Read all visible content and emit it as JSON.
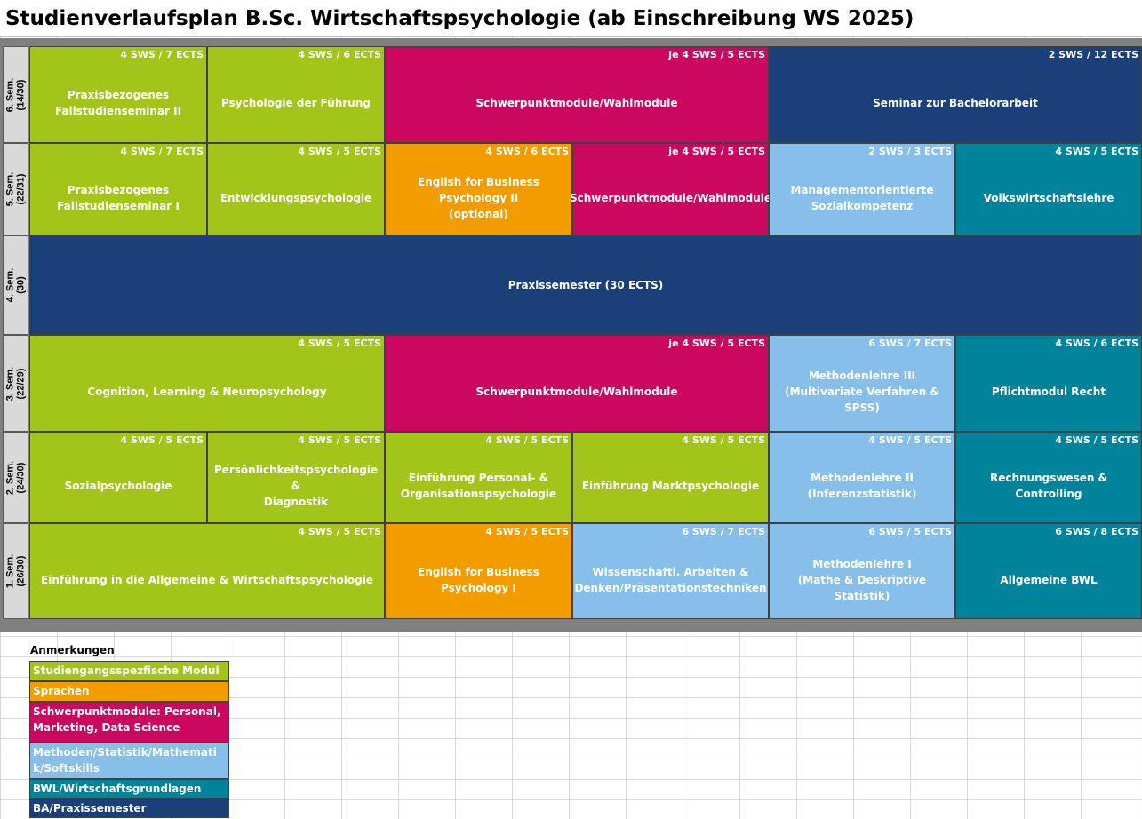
{
  "title": "Studienverlaufsplan B.Sc. Wirtschaftspsychologie (ab Einschreibung WS 2025)",
  "colors": {
    "studiengang": "#a3c519",
    "sprachen": "#f39c00",
    "schwerpunkt": "#cc075f",
    "methoden": "#86bfea",
    "bwl": "#00839b",
    "ba_praxis": "#1b3f78"
  },
  "semesters": [
    {
      "label": "6. Sem.\n(14/30)",
      "cells": [
        {
          "credits": "4 SWS / 7 ECTS",
          "name": "Praxisbezogenes\nFallstudienseminar II",
          "category": "studiengang"
        },
        {
          "credits": "4 SWS / 6 ECTS",
          "name": "Psychologie der Führung",
          "category": "studiengang"
        },
        {
          "credits": "je 4 SWS / 5 ECTS",
          "name": "Schwerpunktmodule/Wahlmodule",
          "category": "schwerpunkt"
        },
        {
          "credits": "2 SWS / 12 ECTS",
          "name": "Seminar zur Bachelorarbeit",
          "category": "ba_praxis"
        }
      ]
    },
    {
      "label": "5. Sem.\n(22/31)",
      "cells": [
        {
          "credits": "4 SWS / 7 ECTS",
          "name": "Praxisbezogenes\nFallstudienseminar I",
          "category": "studiengang"
        },
        {
          "credits": "4 SWS / 5 ECTS",
          "name": "Entwicklungspsychologie",
          "category": "studiengang"
        },
        {
          "credits": "4 SWS / 6 ECTS",
          "name": "English for Business Psychology II\n(optional)",
          "category": "sprachen"
        },
        {
          "credits": "je 4 SWS / 5 ECTS",
          "name": "Schwerpunktmodule/Wahlmodule",
          "category": "schwerpunkt"
        },
        {
          "credits": "2 SWS / 3 ECTS",
          "name": "Managementorientierte\nSozialkompetenz",
          "category": "methoden"
        },
        {
          "credits": "4 SWS / 5 ECTS",
          "name": "Volkswirtschaftslehre",
          "category": "bwl"
        }
      ]
    },
    {
      "label": "4. Sem.\n(30)",
      "cells": [
        {
          "credits": "",
          "name": "Praxissemester (30 ECTS)",
          "category": "ba_praxis"
        }
      ]
    },
    {
      "label": "3. Sem.\n(22/29)",
      "cells": [
        {
          "credits": "4 SWS / 5 ECTS",
          "name": "Cognition, Learning & Neuropsychology",
          "category": "studiengang"
        },
        {
          "credits": "je 4 SWS / 5 ECTS",
          "name": "Schwerpunktmodule/Wahlmodule",
          "category": "schwerpunkt"
        },
        {
          "credits": "6 SWS / 7 ECTS",
          "name": "Methodenlehre III\n(Multivariate Verfahren & SPSS)",
          "category": "methoden"
        },
        {
          "credits": "4 SWS / 6 ECTS",
          "name": "Pflichtmodul Recht",
          "category": "bwl"
        }
      ]
    },
    {
      "label": "2. Sem.\n(24/30)",
      "cells": [
        {
          "credits": "4 SWS / 5 ECTS",
          "name": "Sozialpsychologie",
          "category": "studiengang"
        },
        {
          "credits": "4 SWS / 5 ECTS",
          "name": "Persönlichkeitspsychologie &\nDiagnostik",
          "category": "studiengang"
        },
        {
          "credits": "4 SWS / 5 ECTS",
          "name": "Einführung Personal- &\nOrganisationspsychologie",
          "category": "studiengang"
        },
        {
          "credits": "4 SWS / 5 ECTS",
          "name": "Einführung Marktpsychologie",
          "category": "studiengang"
        },
        {
          "credits": "4 SWS / 5 ECTS",
          "name": "Methodenlehre II\n(Inferenzstatistik)",
          "category": "methoden"
        },
        {
          "credits": "4 SWS / 5 ECTS",
          "name": "Rechnungswesen & Controlling",
          "category": "bwl"
        }
      ]
    },
    {
      "label": "1. Sem.\n(26/30)",
      "cells": [
        {
          "credits": "4 SWS / 5 ECTS",
          "name": "Einführung in die Allgemeine & Wirtschaftspsychologie",
          "category": "studiengang"
        },
        {
          "credits": "4 SWS / 5 ECTS",
          "name": "English for Business Psychology I",
          "category": "sprachen"
        },
        {
          "credits": "6 SWS / 7 ECTS",
          "name": "Wissenschaftl. Arbeiten &\nDenken/Präsentationstechniken",
          "category": "methoden"
        },
        {
          "credits": "6 SWS / 5 ECTS",
          "name": "Methodenlehre I\n(Mathe & Deskriptive Statistik)",
          "category": "methoden"
        },
        {
          "credits": "6 SWS / 8 ECTS",
          "name": "Allgemeine BWL",
          "category": "bwl"
        }
      ]
    }
  ],
  "legend": {
    "title": "Anmerkungen",
    "items": [
      {
        "label": "Studiengangsspezfische Module",
        "category": "studiengang"
      },
      {
        "label": "Sprachen",
        "category": "sprachen"
      },
      {
        "label": "Schwerpunktmodule: Personal,\nMarketing, Data Science",
        "category": "schwerpunkt"
      },
      {
        "label": "Methoden/Statistik/Mathematik/Softskills",
        "category": "methoden"
      },
      {
        "label": "BWL/Wirtschaftsgrundlagen",
        "category": "bwl"
      },
      {
        "label": "BA/Praxissemester",
        "category": "ba_praxis"
      }
    ]
  }
}
